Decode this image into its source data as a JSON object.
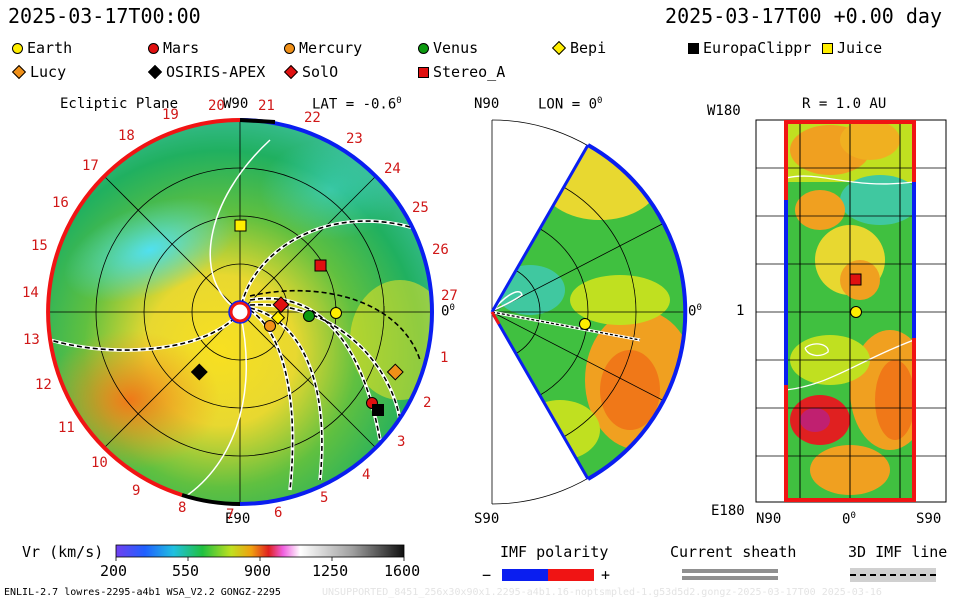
{
  "header": {
    "left_time": "2025-03-17T00:00",
    "right_time": "2025-03-17T00 +0.00 day"
  },
  "legend": [
    {
      "name": "Earth",
      "shape": "circle",
      "color": "#ffee00"
    },
    {
      "name": "Mars",
      "shape": "circle",
      "color": "#e01010"
    },
    {
      "name": "Mercury",
      "shape": "circle",
      "color": "#f09018"
    },
    {
      "name": "Venus",
      "shape": "circle",
      "color": "#0c9a10"
    },
    {
      "name": "Bepi",
      "shape": "diamond",
      "color": "#ffee00"
    },
    {
      "name": "EuropaClippr",
      "shape": "square",
      "color": "#000000"
    },
    {
      "name": "Juice",
      "shape": "square",
      "color": "#ffee00"
    },
    {
      "name": "Lucy",
      "shape": "diamond",
      "color": "#f09018"
    },
    {
      "name": "OSIRIS-APEX",
      "shape": "diamond",
      "color": "#000000"
    },
    {
      "name": "SolO",
      "shape": "diamond",
      "color": "#e01010"
    },
    {
      "name": "Stereo_A",
      "shape": "square",
      "color": "#e01010"
    }
  ],
  "ecliptic": {
    "title": "Ecliptic Plane",
    "top_label": "W90",
    "lat_label": "LAT = -0.6",
    "lat_sup": "0",
    "right_label": "0",
    "right_sup": "0",
    "bottom_label": "E90",
    "carrington_labels": [
      "20",
      "21",
      "22",
      "23",
      "24",
      "25",
      "26",
      "27",
      "1",
      "2",
      "3",
      "4",
      "5",
      "6",
      "7",
      "8",
      "9",
      "10",
      "11",
      "12",
      "13",
      "14",
      "15",
      "16",
      "17",
      "18",
      "19"
    ]
  },
  "meridional": {
    "top_label": "N90",
    "lon_label": "LON = 0",
    "lon_sup": "0",
    "right_label": "0",
    "right_sup": "0",
    "bottom_label": "S90"
  },
  "map": {
    "title": "R = 1.0 AU",
    "top_left": "W180",
    "mid_left": "1",
    "bottom_left": "E180",
    "x_left": "N90",
    "x_mid": "0",
    "x_mid_sup": "0",
    "x_right": "S90"
  },
  "colorbar": {
    "label": "Vr (km/s)",
    "ticks": [
      "200",
      "550",
      "900",
      "1250",
      "1600"
    ]
  },
  "imf": {
    "label": "IMF polarity",
    "minus": "−",
    "plus": "+",
    "neg_color": "#0a1ef0",
    "pos_color": "#f01414"
  },
  "sheath": {
    "label": "Current sheath"
  },
  "imf3d": {
    "label": "3D IMF line"
  },
  "footer": {
    "left": "ENLIL-2.7 lowres-2295-a4b1 WSA_V2.2 GONGZ-2295",
    "right": "UNSUPPORTED_8451_256x30x90x1.2295-a4b1.16-noptsmpled-1.g53d5d2.gongz-2025-03-17T00  2025-03-16"
  }
}
